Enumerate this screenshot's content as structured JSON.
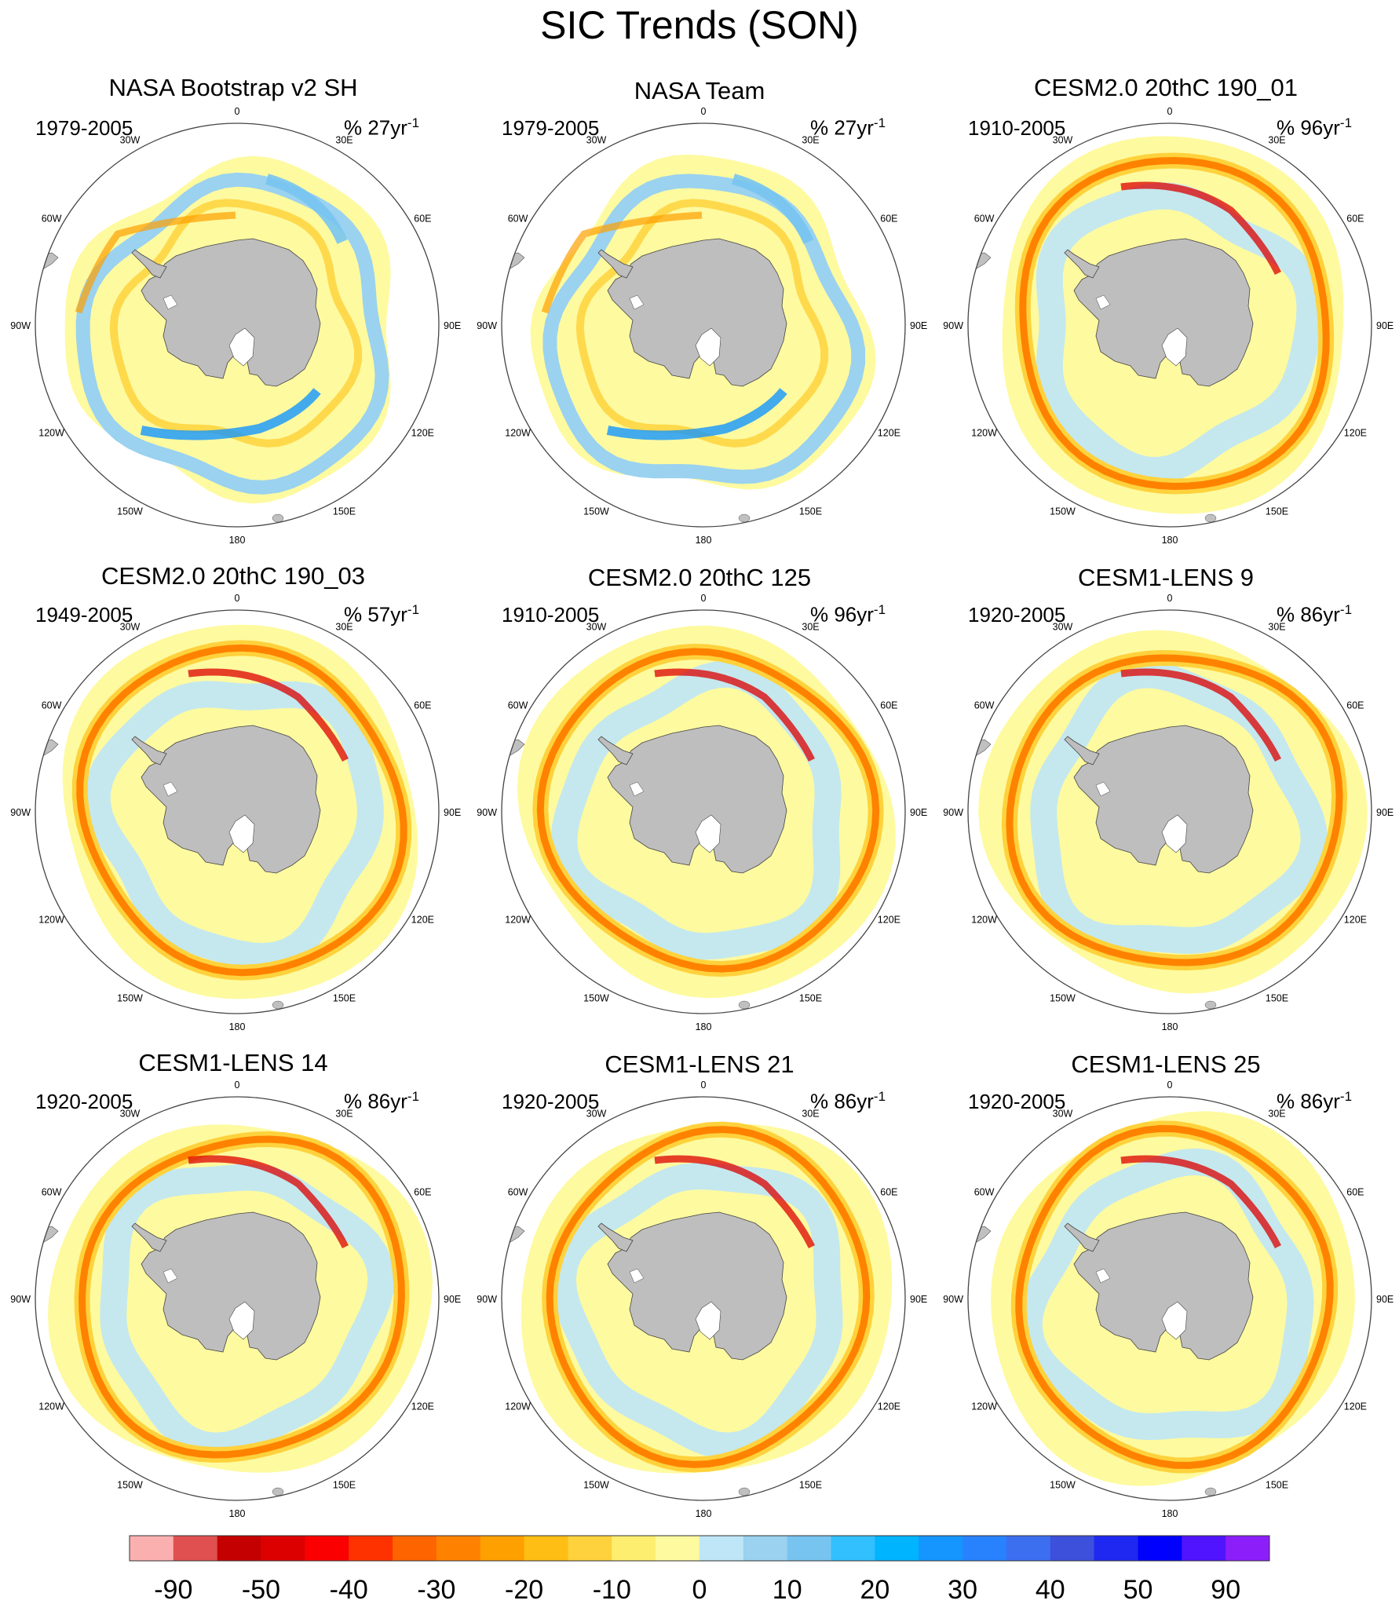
{
  "title": "SIC Trends (SON)",
  "colorbar": {
    "colors": [
      "#fbb0b0",
      "#e05050",
      "#c40000",
      "#dc0000",
      "#fa0000",
      "#fe3200",
      "#fe6400",
      "#fe8200",
      "#fea000",
      "#febe14",
      "#fed23c",
      "#feee70",
      "#fefaa0",
      "#bee6f6",
      "#9ad2f0",
      "#78c4f0",
      "#32c0fe",
      "#00b4fe",
      "#1496fe",
      "#2882fe",
      "#3c6ef0",
      "#3c50dc",
      "#1e28f0",
      "#0000fe",
      "#5014fe",
      "#8c1efa"
    ],
    "tick_labels": [
      "-90",
      "-50",
      "-40",
      "-30",
      "-20",
      "-10",
      "0",
      "10",
      "20",
      "30",
      "40",
      "50",
      "90"
    ]
  },
  "lon_labels": [
    "0",
    "30E",
    "60E",
    "90E",
    "120E",
    "150E",
    "180",
    "150W",
    "120W",
    "90W",
    "60W",
    "30W"
  ],
  "chart_data": [
    {
      "type": "heatmap",
      "title": "NASA Bootstrap v2 SH",
      "period": "1979-2005",
      "units_prefix": "% ",
      "units_value": "27yr",
      "units_exp": "-1",
      "pattern": "observed",
      "projection": "south-polar-stereographic"
    },
    {
      "type": "heatmap",
      "title": "NASA Team",
      "period": "1979-2005",
      "units_prefix": "% ",
      "units_value": "27yr",
      "units_exp": "-1",
      "pattern": "observed",
      "projection": "south-polar-stereographic"
    },
    {
      "type": "heatmap",
      "title": "CESM2.0 20thC 190_01",
      "period": "1910-2005",
      "units_prefix": "% ",
      "units_value": "96yr",
      "units_exp": "-1",
      "pattern": "model",
      "projection": "south-polar-stereographic"
    },
    {
      "type": "heatmap",
      "title": "CESM2.0 20thC 190_03",
      "period": "1949-2005",
      "units_prefix": "% ",
      "units_value": "57yr",
      "units_exp": "-1",
      "pattern": "model",
      "projection": "south-polar-stereographic"
    },
    {
      "type": "heatmap",
      "title": "CESM2.0 20thC 125",
      "period": "1910-2005",
      "units_prefix": "% ",
      "units_value": "96yr",
      "units_exp": "-1",
      "pattern": "model",
      "projection": "south-polar-stereographic"
    },
    {
      "type": "heatmap",
      "title": "CESM1-LENS 9",
      "period": "1920-2005",
      "units_prefix": "% ",
      "units_value": "86yr",
      "units_exp": "-1",
      "pattern": "model",
      "projection": "south-polar-stereographic"
    },
    {
      "type": "heatmap",
      "title": "CESM1-LENS 14",
      "period": "1920-2005",
      "units_prefix": "% ",
      "units_value": "86yr",
      "units_exp": "-1",
      "pattern": "model",
      "projection": "south-polar-stereographic"
    },
    {
      "type": "heatmap",
      "title": "CESM1-LENS 21",
      "period": "1920-2005",
      "units_prefix": "% ",
      "units_value": "86yr",
      "units_exp": "-1",
      "pattern": "model",
      "projection": "south-polar-stereographic"
    },
    {
      "type": "heatmap",
      "title": "CESM1-LENS 25",
      "period": "1920-2005",
      "units_prefix": "% ",
      "units_value": "86yr",
      "units_exp": "-1",
      "pattern": "model",
      "projection": "south-polar-stereographic"
    }
  ]
}
